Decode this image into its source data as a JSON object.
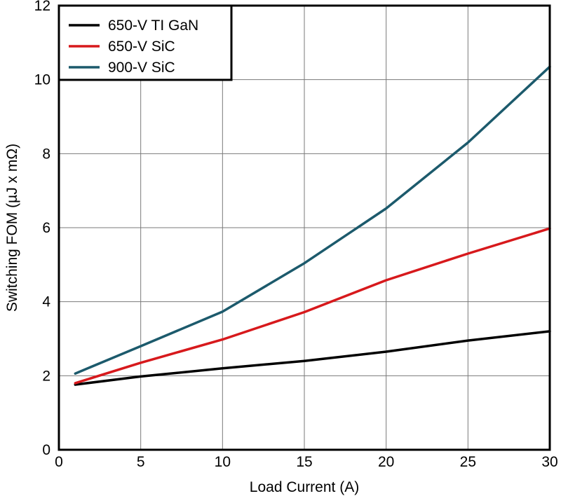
{
  "chart_data": {
    "type": "line",
    "xlabel": "Load Current (A)",
    "ylabel": "Switching FOM (µJ x mΩ)",
    "xlim": [
      0,
      30
    ],
    "ylim": [
      0,
      12
    ],
    "xticks": [
      0,
      5,
      10,
      15,
      20,
      25,
      30
    ],
    "yticks": [
      0,
      2,
      4,
      6,
      8,
      10,
      12
    ],
    "grid": true,
    "legend_position": "top-left",
    "series": [
      {
        "name": "650-V TI GaN",
        "color": "#000000",
        "x": [
          1,
          5,
          10,
          15,
          20,
          25,
          30
        ],
        "y": [
          1.76,
          1.98,
          2.2,
          2.4,
          2.65,
          2.95,
          3.2
        ]
      },
      {
        "name": "650-V SiC",
        "color": "#d7191c",
        "x": [
          1,
          5,
          10,
          15,
          20,
          25,
          30
        ],
        "y": [
          1.8,
          2.35,
          2.98,
          3.72,
          4.58,
          5.3,
          5.98
        ]
      },
      {
        "name": "900-V SiC",
        "color": "#1c5a6c",
        "x": [
          1,
          5,
          10,
          15,
          20,
          25,
          30
        ],
        "y": [
          2.06,
          2.8,
          3.73,
          5.04,
          6.52,
          8.3,
          10.35
        ]
      }
    ]
  }
}
